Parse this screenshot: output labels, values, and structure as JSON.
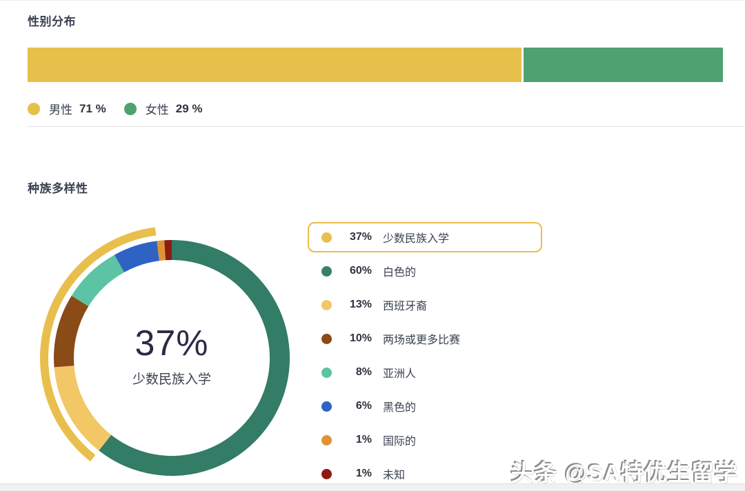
{
  "page": {
    "watermark": "头条 @SA特优生留学"
  },
  "gender": {
    "title": "性别分布",
    "legend": [
      {
        "label": "男性",
        "value": "71 %"
      },
      {
        "label": "女性",
        "value": "29 %"
      }
    ]
  },
  "diversity": {
    "title": "种族多样性",
    "center_value": "37%",
    "center_label": "少数民族入学",
    "legend": [
      {
        "pct": "37%",
        "label": "少数民族入学",
        "color": "#e8bf4c",
        "highlighted": true
      },
      {
        "pct": "60%",
        "label": "白色的",
        "color": "#37806a",
        "highlighted": false
      },
      {
        "pct": "13%",
        "label": "西班牙裔",
        "color": "#f2c765",
        "highlighted": false
      },
      {
        "pct": "10%",
        "label": "两场或更多比赛",
        "color": "#8a4b17",
        "highlighted": false
      },
      {
        "pct": "8%",
        "label": "亚洲人",
        "color": "#5cc3a5",
        "highlighted": false
      },
      {
        "pct": "6%",
        "label": "黑色的",
        "color": "#2e63c4",
        "highlighted": false
      },
      {
        "pct": "1%",
        "label": "国际的",
        "color": "#de9434",
        "highlighted": false
      },
      {
        "pct": "1%",
        "label": "未知",
        "color": "#8e1b13",
        "highlighted": false
      }
    ]
  },
  "chart_data": [
    {
      "type": "bar",
      "variant": "horizontal-stacked",
      "title": "性别分布",
      "categories": [
        "男性",
        "女性"
      ],
      "values": [
        71,
        29
      ],
      "colors": [
        "#e7c04b",
        "#4fa171"
      ],
      "unit": "%",
      "legend_position": "bottom"
    },
    {
      "type": "pie",
      "variant": "donut",
      "title": "种族多样性",
      "center_value": "37%",
      "center_label": "少数民族入学",
      "start_angle_deg": 0,
      "direction": "clockwise",
      "highlight_arc": {
        "label": "少数民族入学",
        "pct": 37,
        "color": "#e8bf4c",
        "position": "outer-ring"
      },
      "segments": [
        {
          "label": "白色的",
          "pct": 60,
          "color": "#337c66",
          "minority": false
        },
        {
          "label": "西班牙裔",
          "pct": 13,
          "color": "#f2c765",
          "minority": true
        },
        {
          "label": "两场或更多比赛",
          "pct": 10,
          "color": "#8a4b17",
          "minority": true
        },
        {
          "label": "亚洲人",
          "pct": 8,
          "color": "#5cc3a5",
          "minority": true
        },
        {
          "label": "黑色的",
          "pct": 6,
          "color": "#2e63c4",
          "minority": true
        },
        {
          "label": "国际的",
          "pct": 1,
          "color": "#de9434",
          "minority": false
        },
        {
          "label": "未知",
          "pct": 1,
          "color": "#8e1b13",
          "minority": false
        }
      ],
      "legend_position": "right"
    }
  ]
}
